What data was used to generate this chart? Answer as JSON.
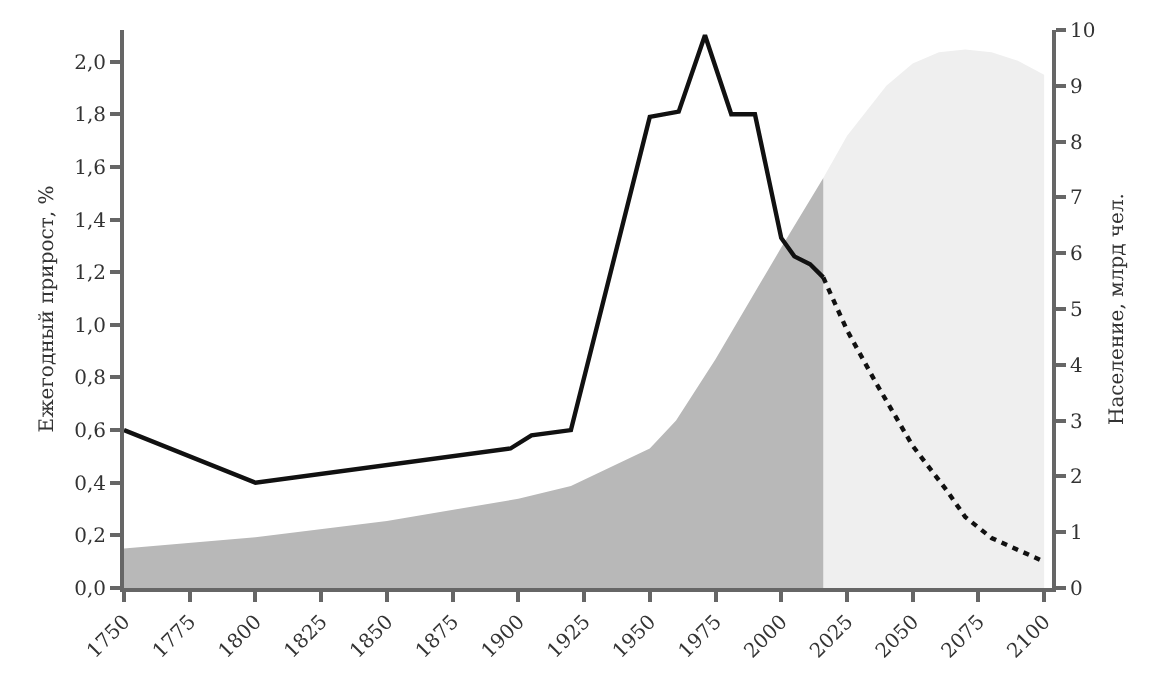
{
  "chart_data": {
    "type": "line",
    "ylabel": "Ежегодный прирост, %",
    "y2label": "Население, млрд чел.",
    "xlim": [
      1750,
      2103
    ],
    "xticks": [
      1750,
      1775,
      1800,
      1825,
      1850,
      1875,
      1900,
      1925,
      1950,
      1975,
      2000,
      2025,
      2050,
      2075,
      2100
    ],
    "ylim": [
      0,
      2.12
    ],
    "yticks": [
      {
        "value": 0,
        "label": "0,0"
      },
      {
        "value": 0.2,
        "label": "0,2"
      },
      {
        "value": 0.4,
        "label": "0,4"
      },
      {
        "value": 0.6,
        "label": "0,6"
      },
      {
        "value": 0.8,
        "label": "0,8"
      },
      {
        "value": 1,
        "label": "1,0"
      },
      {
        "value": 1.2,
        "label": "1,2"
      },
      {
        "value": 1.4,
        "label": "1,4"
      },
      {
        "value": 1.6,
        "label": "1,6"
      },
      {
        "value": 1.8,
        "label": "1,8"
      },
      {
        "value": 2,
        "label": "2,0"
      }
    ],
    "y2lim": [
      0,
      10
    ],
    "y2ticks": [
      0,
      1,
      2,
      3,
      4,
      5,
      6,
      7,
      8,
      9,
      10
    ],
    "grid": false,
    "marker": "none",
    "series": [
      {
        "type": "area",
        "axis": "y2",
        "color": "#efefef",
        "x": [
          2016,
          2025,
          2040,
          2050,
          2060,
          2070,
          2080,
          2090,
          2100
        ],
        "values": [
          7.35,
          8.1,
          9.0,
          9.4,
          9.6,
          9.65,
          9.6,
          9.45,
          9.2
        ]
      },
      {
        "type": "area",
        "axis": "y2",
        "color": "#b8b8b8",
        "x": [
          1750,
          1800,
          1850,
          1900,
          1920,
          1950,
          1960,
          1975,
          2000,
          2016
        ],
        "values": [
          0.71,
          0.91,
          1.2,
          1.6,
          1.83,
          2.5,
          3.0,
          4.1,
          6.1,
          7.35
        ]
      },
      {
        "color": "#111111",
        "line_style": "solid",
        "x": [
          1750,
          1800,
          1897,
          1905,
          1920,
          1950,
          1961,
          1971,
          1981,
          1990,
          2000,
          2005,
          2011,
          2016
        ],
        "values": [
          0.6,
          0.4,
          0.53,
          0.58,
          0.6,
          1.79,
          1.81,
          2.1,
          1.8,
          1.8,
          1.33,
          1.26,
          1.23,
          1.18
        ]
      },
      {
        "color": "#111111",
        "line_style": "dotted",
        "x": [
          2016,
          2025,
          2036,
          2050,
          2063,
          2070,
          2080,
          2100
        ],
        "values": [
          1.18,
          0.98,
          0.78,
          0.54,
          0.37,
          0.27,
          0.19,
          0.1
        ]
      }
    ]
  }
}
